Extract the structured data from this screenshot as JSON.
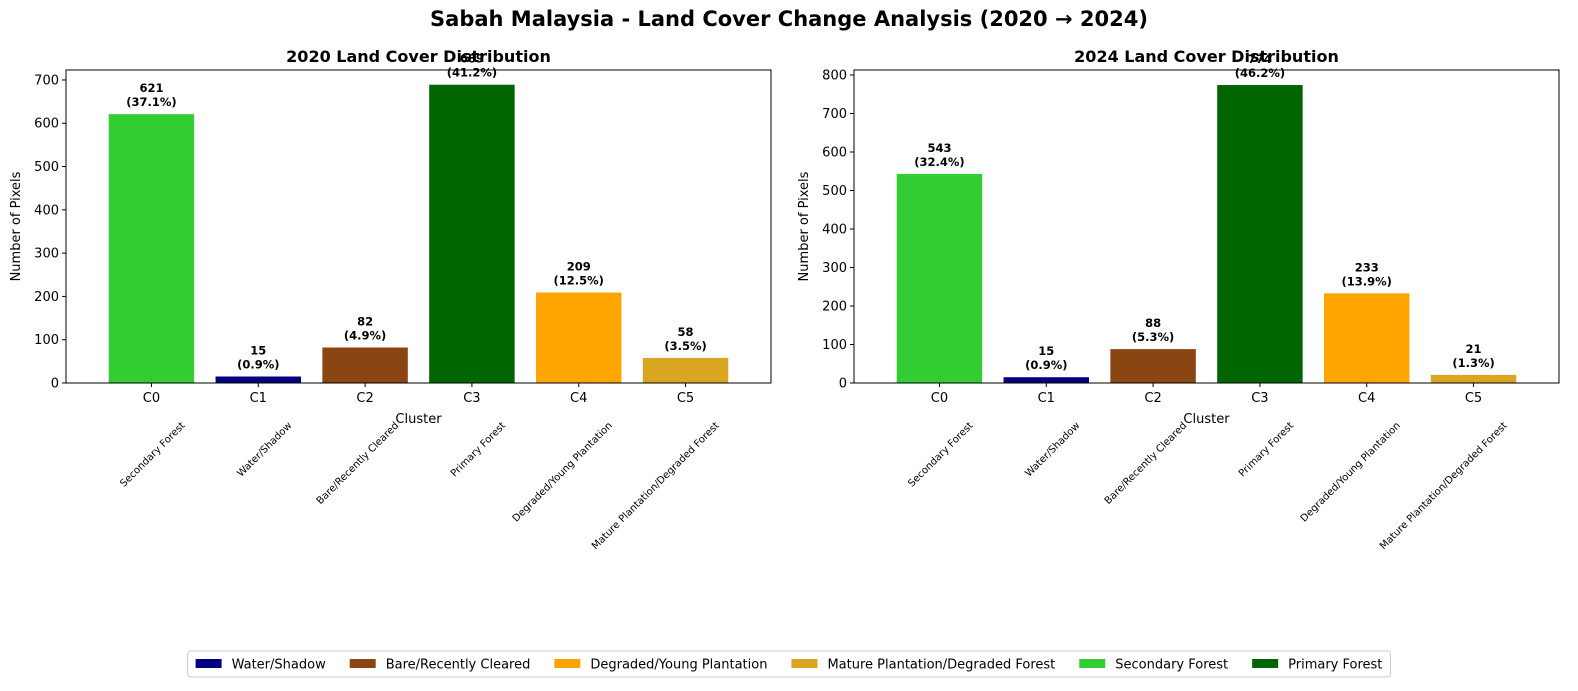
{
  "suptitle": "Sabah Malaysia - Land Cover Change Analysis (2020 → 2024)",
  "chart_data": [
    {
      "type": "bar",
      "title": "2020 Land Cover Distribution",
      "xlabel": "Cluster",
      "ylabel": "Number of Pixels",
      "categories": [
        "C0",
        "C1",
        "C2",
        "C3",
        "C4",
        "C5"
      ],
      "class_names": [
        "Secondary Forest",
        "Water/Shadow",
        "Bare/Recently Cleared",
        "Primary Forest",
        "Degraded/Young Plantation",
        "Mature Plantation/Degraded Forest"
      ],
      "values": [
        621,
        15,
        82,
        689,
        209,
        58
      ],
      "percents": [
        "(37.1%)",
        "(0.9%)",
        "(4.9%)",
        "(41.2%)",
        "(12.5%)",
        "(3.5%)"
      ],
      "colors": [
        "#32cd32",
        "#000080",
        "#8b4513",
        "#006400",
        "#ffa500",
        "#daa520"
      ],
      "ylim": [
        0,
        723
      ],
      "yticks": [
        0,
        100,
        200,
        300,
        400,
        500,
        600,
        700
      ]
    },
    {
      "type": "bar",
      "title": "2024 Land Cover Distribution",
      "xlabel": "Cluster",
      "ylabel": "Number of Pixels",
      "categories": [
        "C0",
        "C1",
        "C2",
        "C3",
        "C4",
        "C5"
      ],
      "class_names": [
        "Secondary Forest",
        "Water/Shadow",
        "Bare/Recently Cleared",
        "Primary Forest",
        "Degraded/Young Plantation",
        "Mature Plantation/Degraded Forest"
      ],
      "values": [
        543,
        15,
        88,
        774,
        233,
        21
      ],
      "percents": [
        "(32.4%)",
        "(0.9%)",
        "(5.3%)",
        "(46.2%)",
        "(13.9%)",
        "(1.3%)"
      ],
      "colors": [
        "#32cd32",
        "#000080",
        "#8b4513",
        "#006400",
        "#ffa500",
        "#daa520"
      ],
      "ylim": [
        0,
        813
      ],
      "yticks": [
        0,
        100,
        200,
        300,
        400,
        500,
        600,
        700,
        800
      ]
    }
  ],
  "legend": {
    "placement": "bottom-center",
    "entries": [
      {
        "label": "Water/Shadow",
        "color": "#000080"
      },
      {
        "label": "Bare/Recently Cleared",
        "color": "#8b4513"
      },
      {
        "label": "Degraded/Young Plantation",
        "color": "#ffa500"
      },
      {
        "label": "Mature Plantation/Degraded Forest",
        "color": "#daa520"
      },
      {
        "label": "Secondary Forest",
        "color": "#32cd32"
      },
      {
        "label": "Primary Forest",
        "color": "#006400"
      }
    ]
  }
}
